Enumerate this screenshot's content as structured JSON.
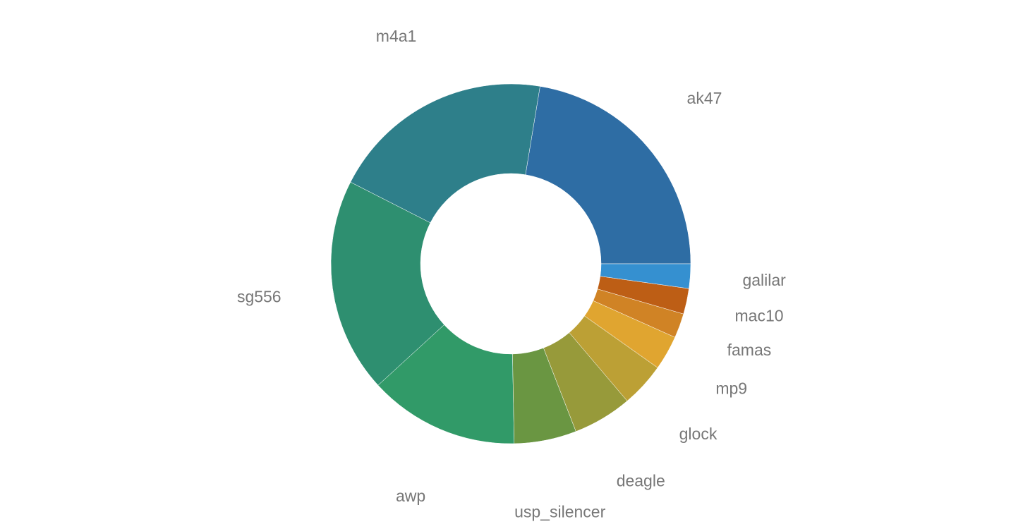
{
  "chart_data": {
    "type": "donut",
    "categories": [
      "ak47",
      "m4a1",
      "sg556",
      "awp",
      "usp_silencer",
      "deagle",
      "glock",
      "mp9",
      "famas",
      "mac10",
      "galilar"
    ],
    "values": [
      22.4,
      20.1,
      19.3,
      13.5,
      5.6,
      5.3,
      4.0,
      3.1,
      2.2,
      2.3,
      2.2
    ],
    "colors": [
      "#2e6da4",
      "#2e7f8a",
      "#2e8f70",
      "#319a68",
      "#6a9642",
      "#979a3a",
      "#bca035",
      "#e0a530",
      "#d08325",
      "#bd5e15",
      "#3590d0"
    ]
  }
}
